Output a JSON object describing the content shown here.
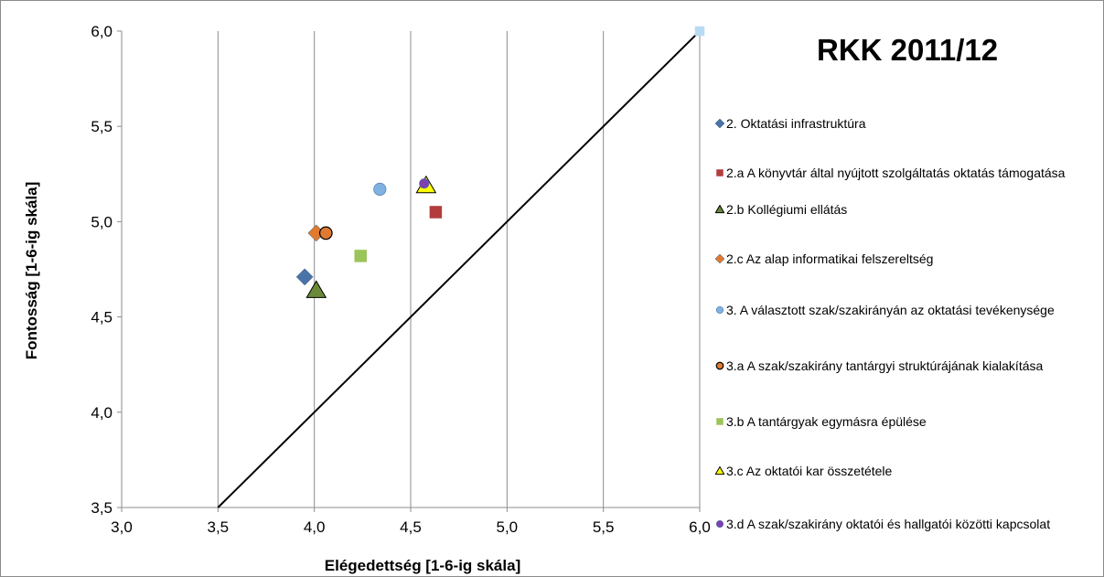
{
  "chart_data": {
    "type": "scatter",
    "title": "RKK 2011/12",
    "xlabel": "Elégedettség [1-6-ig skála]",
    "ylabel": "Fontosság [1-6-ig skála]",
    "xlim": [
      3.0,
      6.0
    ],
    "ylim": [
      3.5,
      6.0
    ],
    "x_ticks": [
      "3,0",
      "3,5",
      "4,0",
      "4,5",
      "5,0",
      "5,5",
      "6,0"
    ],
    "y_ticks": [
      "3,5",
      "4,0",
      "4,5",
      "5,0",
      "5,5",
      "6,0"
    ],
    "grid": "vertical",
    "legend_position": "right",
    "reference_line": {
      "from": [
        3.5,
        3.5
      ],
      "to": [
        6.0,
        6.0
      ]
    },
    "series": [
      {
        "name": "2. Oktatási infrastruktúra",
        "marker": "diamond",
        "color": "#4a73a8",
        "x": 3.95,
        "y": 4.71
      },
      {
        "name": "2.a  A könyvtár által nyújtott szolgáltatás oktatás támogatása",
        "marker": "square",
        "color": "#b33c3c",
        "x": 4.63,
        "y": 5.05
      },
      {
        "name": "2.b  Kollégiumi ellátás",
        "marker": "triangle",
        "color": "#6a8a3a",
        "x": 4.01,
        "y": 4.64
      },
      {
        "name": "2.c  Az alap informatikai felszereltség",
        "marker": "diamond",
        "color": "#e07a30",
        "x": 4.01,
        "y": 4.94
      },
      {
        "name": "3. A választott szak/szakirányán az oktatási tevékenysége",
        "marker": "circle",
        "color": "#7fb2e0",
        "x": 4.34,
        "y": 5.17
      },
      {
        "name": "3.a  A  szak/szakirány tantárgyi struktúrájának kialakítása",
        "marker": "circle-outlined",
        "color": "#e07a30",
        "x": 4.06,
        "y": 4.94
      },
      {
        "name": "3.b  A tantárgyak egymásra épülése",
        "marker": "square",
        "color": "#9bc45a",
        "x": 4.24,
        "y": 4.82
      },
      {
        "name": "3.c  Az oktatói kar összetétele",
        "marker": "triangle",
        "color": "#ffff00",
        "x": 4.58,
        "y": 5.19
      },
      {
        "name": "3.d  A szak/szakirány oktatói és hallgatói közötti kapcsolat",
        "marker": "circle",
        "color": "#7f3fb0",
        "x": 4.57,
        "y": 5.2
      }
    ],
    "extra_point": {
      "marker": "square",
      "color": "#b7dbf2",
      "x": 6.0,
      "y": 6.0
    }
  }
}
